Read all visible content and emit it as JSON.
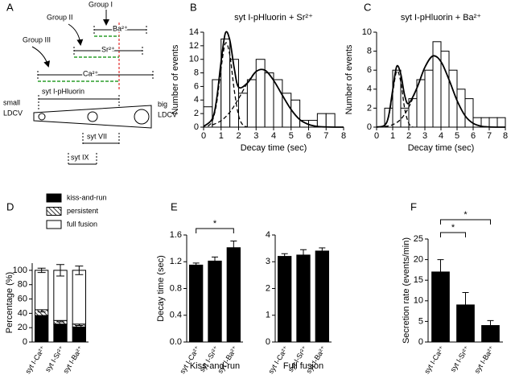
{
  "diagram": {
    "panel": "A",
    "groups": [
      "Group I",
      "Group II",
      "Group III"
    ],
    "ions": [
      "Ba²⁺",
      "Sr²⁺",
      "Ca²⁺"
    ],
    "probe": "syt I-pHluorin",
    "small_ldcv": [
      "small",
      "LDCV"
    ],
    "big_ldcv": [
      "big",
      "LDCV"
    ],
    "isoforms": [
      "syt VII",
      "syt IX"
    ]
  },
  "chart_data": [
    {
      "type": "histogram",
      "panel": "B",
      "title": "syt I-pHluorin + Sr²⁺",
      "x_label": "Decay time (sec)",
      "y_label": "Number of events",
      "bins": [
        0,
        0.5,
        1,
        1.5,
        2,
        2.5,
        3,
        3.5,
        4,
        4.5,
        5,
        5.5,
        6,
        6.5,
        7,
        7.5
      ],
      "counts": [
        3,
        7,
        13,
        10,
        5,
        7,
        10,
        8,
        7,
        5,
        4,
        1,
        1,
        2,
        2
      ],
      "bar_color": "#ffffff",
      "edge_color": "#000000",
      "curves": [
        {
          "style": "solid",
          "x": [
            0,
            0.5,
            0.75,
            1,
            1.25,
            1.5,
            1.75,
            2,
            2.5,
            3,
            3.5,
            4,
            4.5,
            5,
            5.5,
            6,
            6.5,
            7,
            7.5,
            8
          ],
          "values": [
            0.1,
            1.25,
            4.2,
            9.65,
            13.9,
            12.8,
            8.7,
            5.9,
            6.5,
            8.2,
            8.4,
            6.9,
            4.7,
            2.6,
            1.1,
            0.4,
            0.1,
            0.03,
            0,
            0
          ]
        },
        {
          "style": "dashed",
          "x": [
            0.25,
            0.5,
            0.75,
            1,
            1.25,
            1.5,
            1.75,
            2,
            2.25,
            2.5
          ],
          "values": [
            0.14,
            0.92,
            3.6,
            8.7,
            12.4,
            10.6,
            5.5,
            1.7,
            0.3,
            0.03
          ]
        },
        {
          "style": "dashed",
          "x": [
            0.5,
            1,
            1.5,
            2,
            2.5,
            3,
            3.5,
            4,
            4.5,
            5,
            5.5,
            6,
            6.5,
            7
          ],
          "values": [
            0.33,
            0.95,
            2.2,
            4.2,
            6.5,
            8.2,
            8.4,
            6.9,
            4.7,
            2.6,
            1.1,
            0.4,
            0.1,
            0.03
          ]
        }
      ],
      "xlim": [
        0,
        8
      ],
      "xticks": [
        0,
        1,
        2,
        3,
        4,
        5,
        6,
        7,
        8
      ],
      "ylim": [
        0,
        14
      ],
      "yticks": [
        0,
        2,
        4,
        6,
        8,
        10,
        12,
        14
      ]
    },
    {
      "type": "histogram",
      "panel": "C",
      "title": "syt I-pHluorin + Ba²⁺",
      "x_label": "Decay time (sec)",
      "y_label": "Number of events",
      "bins": [
        0.5,
        1,
        1.5,
        2,
        2.5,
        3,
        3.5,
        4,
        4.5,
        5,
        5.5,
        6,
        6.5,
        7,
        7.5,
        8
      ],
      "counts": [
        2,
        6,
        2,
        3,
        5,
        6,
        9,
        8,
        6,
        4,
        3,
        1,
        1,
        1,
        1
      ],
      "bar_color": "#ffffff",
      "edge_color": "#000000",
      "curves": [
        {
          "style": "solid",
          "x": [
            0,
            0.5,
            0.75,
            1,
            1.25,
            1.5,
            1.75,
            2,
            2.5,
            3,
            3.5,
            4,
            4.5,
            5,
            5.5,
            6,
            6.5,
            7,
            7.5,
            8
          ],
          "values": [
            0.01,
            0.2,
            1.2,
            3.9,
            6.4,
            5.6,
            3.3,
            2.5,
            4.1,
            6.3,
            7.5,
            6.9,
            5,
            2.8,
            1.2,
            0.4,
            0.1,
            0.02,
            0,
            0
          ]
        },
        {
          "style": "dashed",
          "x": [
            0.5,
            0.75,
            1,
            1.25,
            1.5,
            1.75,
            2,
            2.25
          ],
          "values": [
            0.17,
            1.1,
            3.6,
            5.9,
            4.8,
            1.9,
            0.4,
            0.04
          ]
        },
        {
          "style": "dashed",
          "x": [
            0.5,
            1,
            1.5,
            2,
            2.5,
            3,
            3.5,
            4,
            4.5,
            5,
            5.5,
            6,
            6.5,
            7
          ],
          "values": [
            0.06,
            0.26,
            0.83,
            2.1,
            4.1,
            6.3,
            7.46,
            6.9,
            5,
            2.8,
            1.2,
            0.4,
            0.1,
            0.02
          ]
        }
      ],
      "xlim": [
        0,
        8
      ],
      "xticks": [
        0,
        1,
        2,
        3,
        4,
        5,
        6,
        7,
        8
      ],
      "ylim": [
        0,
        10
      ],
      "yticks": [
        0,
        2,
        4,
        6,
        8,
        10
      ]
    },
    {
      "type": "stacked_bar",
      "panel": "D",
      "y_label": "Percentage (%)",
      "categories": [
        "syt I-Ca²⁺",
        "syt I-Sr²⁺",
        "syt I-Ba²⁺"
      ],
      "series": [
        {
          "name": "kiss-and-run",
          "color": "#000000",
          "values": [
            37,
            25,
            21
          ],
          "errors": [
            4,
            3,
            2
          ]
        },
        {
          "name": "persistent",
          "color": "#ffffff",
          "hatch": true,
          "values": [
            8,
            5,
            4
          ],
          "errors": [
            3,
            2,
            2
          ]
        },
        {
          "name": "full fusion",
          "color": "#ffffff",
          "values": [
            55,
            70,
            75
          ],
          "errors": [
            3,
            8,
            6
          ]
        }
      ],
      "ylim": [
        0,
        110
      ],
      "yticks": [
        0,
        20,
        40,
        60,
        80,
        100
      ]
    },
    {
      "type": "bar",
      "panel": "E",
      "y_label": "Decay time (sec)",
      "x_label": "Kiss-and-run",
      "categories": [
        "syt I-Ca²⁺",
        "syt I-Sr²⁺",
        "syt I-Ba²⁺"
      ],
      "values": [
        1.15,
        1.21,
        1.41
      ],
      "errors": [
        0.03,
        0.06,
        0.1
      ],
      "color": "#000000",
      "ylim": [
        0,
        1.6
      ],
      "yticks": [
        {
          "value": 0,
          "label": "0.0"
        },
        0.4,
        0.8,
        1.2,
        1.6
      ],
      "significance": [
        {
          "between": [
            0,
            2
          ],
          "label": "*"
        }
      ]
    },
    {
      "type": "bar",
      "x_label": "Full fusion",
      "categories": [
        "syt I-Ca²⁺",
        "syt I-Sr²⁺",
        "syt I-Ba²⁺"
      ],
      "values": [
        3.2,
        3.25,
        3.4
      ],
      "errors": [
        0.1,
        0.2,
        0.12
      ],
      "color": "#000000",
      "ylim": [
        0,
        4
      ],
      "yticks": [
        0,
        1,
        2,
        3,
        4
      ]
    },
    {
      "type": "bar",
      "panel": "F",
      "y_label": "Secretion rate (events/min)",
      "categories": [
        "syt I-Ca²⁺",
        "syt I-Sr²⁺",
        "syt I-Ba²⁺"
      ],
      "values": [
        17,
        9,
        4
      ],
      "errors": [
        3,
        3,
        1.2
      ],
      "color": "#000000",
      "ylim": [
        0,
        25
      ],
      "yticks": [
        0,
        5,
        10,
        15,
        20,
        25
      ],
      "significance": [
        {
          "between": [
            0,
            1
          ],
          "label": "*"
        },
        {
          "between": [
            0,
            2
          ],
          "label": "*"
        }
      ]
    }
  ]
}
